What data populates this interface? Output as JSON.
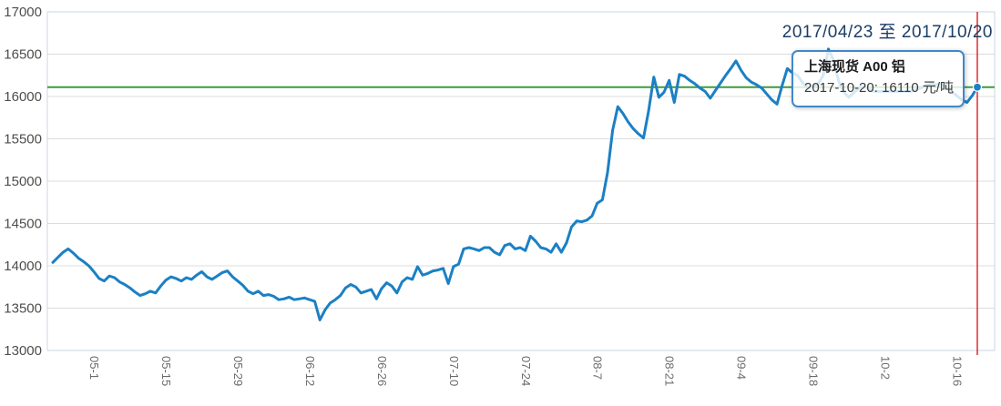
{
  "header": {
    "date_range": "2017/04/23 至 2017/10/20"
  },
  "tooltip": {
    "series_name": "上海现货 A00 铝",
    "value_line": "2017-10-20: 16110 元/吨"
  },
  "chart_data": {
    "type": "line",
    "title": "2017/04/23 至 2017/10/20",
    "series": [
      {
        "name": "上海现货 A00 铝",
        "unit": "元/吨",
        "start_date": "2017-04-23",
        "end_date": "2017-10-20",
        "values": [
          14040,
          14100,
          14160,
          14200,
          14150,
          14090,
          14050,
          14000,
          13930,
          13850,
          13820,
          13880,
          13860,
          13810,
          13780,
          13740,
          13690,
          13650,
          13670,
          13700,
          13680,
          13760,
          13830,
          13870,
          13850,
          13820,
          13860,
          13840,
          13890,
          13930,
          13870,
          13840,
          13880,
          13920,
          13940,
          13870,
          13820,
          13770,
          13700,
          13670,
          13700,
          13650,
          13660,
          13640,
          13600,
          13610,
          13630,
          13600,
          13610,
          13620,
          13600,
          13580,
          13360,
          13480,
          13560,
          13600,
          13650,
          13740,
          13780,
          13750,
          13680,
          13700,
          13720,
          13610,
          13730,
          13800,
          13760,
          13680,
          13810,
          13860,
          13840,
          13990,
          13890,
          13910,
          13940,
          13950,
          13970,
          13790,
          13990,
          14020,
          14200,
          14215,
          14200,
          14180,
          14215,
          14215,
          14160,
          14130,
          14240,
          14260,
          14200,
          14215,
          14180,
          14350,
          14290,
          14215,
          14200,
          14160,
          14260,
          14160,
          14270,
          14460,
          14530,
          14520,
          14540,
          14590,
          14740,
          14780,
          15100,
          15600,
          15880,
          15800,
          15700,
          15620,
          15560,
          15510,
          15830,
          16230,
          15990,
          16050,
          16190,
          15930,
          16260,
          16240,
          16190,
          16150,
          16100,
          16060,
          15980,
          16070,
          16160,
          16250,
          16330,
          16420,
          16310,
          16220,
          16170,
          16140,
          16100,
          16030,
          15960,
          15910,
          16130,
          16330,
          16280,
          16250,
          16160,
          16100,
          16120,
          16150,
          16250,
          16560,
          16430,
          16180,
          16050,
          15990,
          16050,
          16100,
          16120,
          16080,
          16060,
          16060,
          16060,
          16060,
          16060,
          16060,
          16060,
          16060,
          16080,
          16100,
          16130,
          16150,
          16140,
          16150,
          16100,
          16060,
          16010,
          15960,
          15930,
          16010,
          16110
        ]
      }
    ],
    "x_ticks": [
      {
        "index": 8,
        "label": "05-1"
      },
      {
        "index": 22,
        "label": "05-15"
      },
      {
        "index": 36,
        "label": "05-29"
      },
      {
        "index": 50,
        "label": "06-12"
      },
      {
        "index": 64,
        "label": "06-26"
      },
      {
        "index": 78,
        "label": "07-10"
      },
      {
        "index": 92,
        "label": "07-24"
      },
      {
        "index": 106,
        "label": "08-7"
      },
      {
        "index": 120,
        "label": "08-21"
      },
      {
        "index": 134,
        "label": "09-4"
      },
      {
        "index": 148,
        "label": "09-18"
      },
      {
        "index": 162,
        "label": "10-2"
      },
      {
        "index": 176,
        "label": "10-16"
      }
    ],
    "y_ticks": [
      "13000",
      "13500",
      "14000",
      "14500",
      "15000",
      "15500",
      "16000",
      "16500",
      "17000"
    ],
    "ylim": [
      13000,
      17000
    ],
    "y_tick_step": 500,
    "grid": true,
    "legend_position": "none",
    "last_point": {
      "date": "2017-10-20",
      "value": 16110
    },
    "reference_lines": {
      "current_price_value": 16110,
      "cursor_at_index": 180
    },
    "colors": {
      "line": "#1b80c4",
      "current_price_line": "#3f9b3f",
      "cursor_line": "#e12b2b",
      "grid_line": "#dcdcdc",
      "plot_border": "#c9d6e2",
      "y_label": "#4d4d4d",
      "x_label": "#6b6b6b",
      "title_text": "#1b3e66",
      "dot_fill": "#1b80c4"
    }
  }
}
